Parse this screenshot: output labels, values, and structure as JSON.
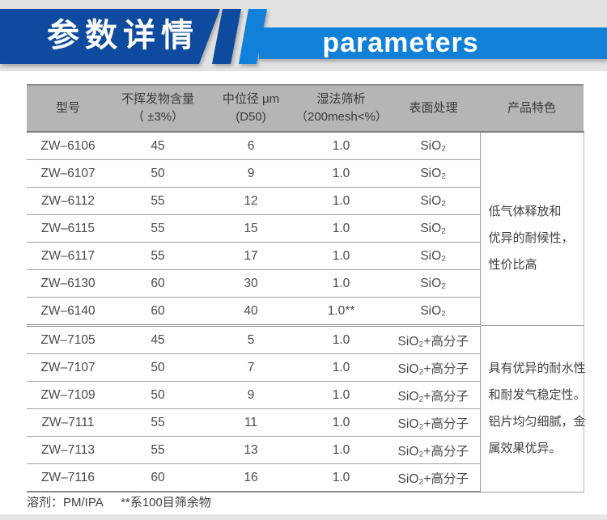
{
  "header": {
    "title_cn": "参数详情",
    "title_en": "parameters",
    "dark_blue": "#0e4a9e",
    "light_blue": "#1180d8"
  },
  "table": {
    "columns": [
      {
        "line1": "型号",
        "line2": ""
      },
      {
        "line1": "不挥发物含量",
        "line2": "（ ±3%）"
      },
      {
        "line1": "中位径 μm",
        "line2": "(D50)"
      },
      {
        "line1": "湿法筛析",
        "line2": "（200mesh<%）"
      },
      {
        "line1": "表面处理",
        "line2": ""
      },
      {
        "line1": "产品特色",
        "line2": ""
      }
    ],
    "sections": [
      {
        "rows": [
          {
            "model": "ZW–6106",
            "nv": "45",
            "d50": "6",
            "mesh": "1.0",
            "surface": "SiO₂"
          },
          {
            "model": "ZW–6107",
            "nv": "50",
            "d50": "9",
            "mesh": "1.0",
            "surface": "SiO₂"
          },
          {
            "model": "ZW–6112",
            "nv": "55",
            "d50": "12",
            "mesh": "1.0",
            "surface": "SiO₂"
          },
          {
            "model": "ZW–6115",
            "nv": "55",
            "d50": "15",
            "mesh": "1.0",
            "surface": "SiO₂"
          },
          {
            "model": "ZW–6117",
            "nv": "55",
            "d50": "17",
            "mesh": "1.0",
            "surface": "SiO₂"
          },
          {
            "model": "ZW–6130",
            "nv": "60",
            "d50": "30",
            "mesh": "1.0",
            "surface": "SiO₂"
          },
          {
            "model": "ZW–6140",
            "nv": "60",
            "d50": "40",
            "mesh": "1.0**",
            "surface": "SiO₂"
          }
        ],
        "feature_lines": [
          "低气体释放和",
          "优异的耐候性，",
          "性价比高"
        ]
      },
      {
        "rows": [
          {
            "model": "ZW–7105",
            "nv": "45",
            "d50": "5",
            "mesh": "1.0",
            "surface": "SiO₂+高分子"
          },
          {
            "model": "ZW–7107",
            "nv": "50",
            "d50": "7",
            "mesh": "1.0",
            "surface": "SiO₂+高分子"
          },
          {
            "model": "ZW–7109",
            "nv": "50",
            "d50": "9",
            "mesh": "1.0",
            "surface": "SiO₂+高分子"
          },
          {
            "model": "ZW–7111",
            "nv": "55",
            "d50": "11",
            "mesh": "1.0",
            "surface": "SiO₂+高分子"
          },
          {
            "model": "ZW–7113",
            "nv": "55",
            "d50": "13",
            "mesh": "1.0",
            "surface": "SiO₂+高分子"
          },
          {
            "model": "ZW–7116",
            "nv": "60",
            "d50": "16",
            "mesh": "1.0",
            "surface": "SiO₂+高分子"
          }
        ],
        "feature_lines": [
          "具有优异的耐水性",
          "和耐发气稳定性。",
          "铝片均匀细腻，金",
          "属效果优异。"
        ]
      }
    ]
  },
  "footer": {
    "solvent": "溶剂：PM/IPA",
    "note": "**系100目筛余物"
  }
}
